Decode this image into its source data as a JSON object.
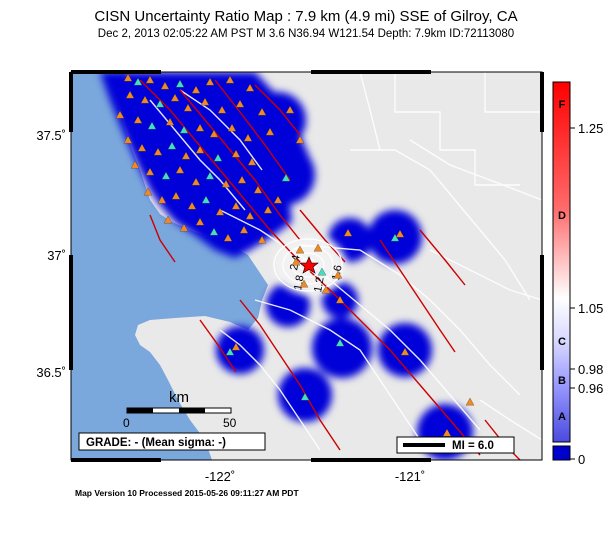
{
  "title": "CISN Uncertainty Ratio Map : 7.9 km (4.9 mi) SSE of Gilroy, CA",
  "subtitle": "Dec  2, 2013 02:05:22 AM PST   M 3.6   N36.94 W121.54   Depth: 7.9km   ID:72113080",
  "footer": "Map Version 10 Processed 2015-05-26 09:11:27 AM PDT",
  "axes": {
    "lat_ticks": [
      {
        "value": 37.5,
        "label": "37.5˚"
      },
      {
        "value": 37.0,
        "label": "37˚"
      },
      {
        "value": 36.5,
        "label": "36.5˚"
      }
    ],
    "lon_ticks": [
      {
        "value": -122.0,
        "label": "-122˚"
      },
      {
        "value": -121.0,
        "label": "-121˚"
      }
    ],
    "lat_range": [
      36.12,
      37.78
    ],
    "lon_range": [
      -122.52,
      -120.53
    ]
  },
  "scale_bar": {
    "unit": "km",
    "labels": [
      "0",
      "50"
    ]
  },
  "grade_box": "GRADE: - (Mean sigma: -)",
  "legend": {
    "label": "MI = 6.0"
  },
  "colorbar": {
    "ticks": [
      "1.25",
      "1.05",
      "0.98",
      "0.96",
      "0"
    ],
    "tick_values": [
      1.25,
      1.05,
      0.98,
      0.96,
      0
    ],
    "grades": [
      "F",
      "D",
      "C",
      "B",
      "A"
    ],
    "colors": {
      "high": "#ff0000",
      "mid": "#ffffff",
      "low": "#0000cc",
      "bottom": "#0000cc"
    }
  },
  "contour_labels": [
    "2.4",
    "1.8",
    "1.2",
    "1.6"
  ],
  "colors": {
    "ocean": "#7aa7dc",
    "land": "#e9e9e9",
    "coverage": "#0000d8",
    "fault": "#cc0000",
    "road": "#ffffff",
    "station_triangle": "#f08a20",
    "station_intensity": "#40e0c0",
    "epicenter": "#ff0000"
  }
}
